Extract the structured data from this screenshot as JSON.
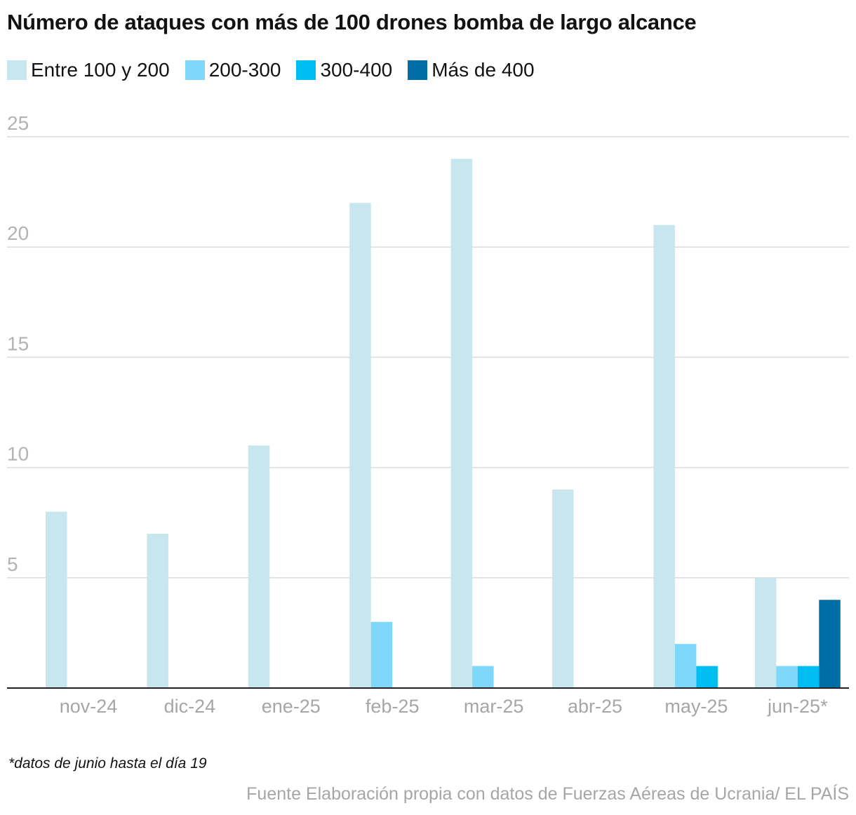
{
  "chart_data": {
    "type": "bar",
    "title": "Número de ataques con más de 100 drones bomba de largo alcance",
    "categories": [
      "nov-24",
      "dic-24",
      "ene-25",
      "feb-25",
      "mar-25",
      "abr-25",
      "may-25",
      "jun-25*"
    ],
    "series": [
      {
        "name": "Entre 100 y 200",
        "color": "#c8e6ee",
        "values": [
          8,
          7,
          11,
          22,
          24,
          9,
          21,
          5
        ]
      },
      {
        "name": "200-300",
        "color": "#7fd8f9",
        "values": [
          0,
          0,
          0,
          3,
          1,
          0,
          2,
          1
        ]
      },
      {
        "name": "300-400",
        "color": "#00bdf2",
        "values": [
          0,
          0,
          0,
          0,
          0,
          0,
          1,
          1
        ]
      },
      {
        "name": "Más de 400",
        "color": "#006ea6",
        "values": [
          0,
          0,
          0,
          0,
          0,
          0,
          0,
          4
        ]
      }
    ],
    "yticks": [
      5,
      10,
      15,
      20,
      25
    ],
    "ylim": [
      0,
      25
    ],
    "xlabel": "",
    "ylabel": "",
    "grid": true,
    "legend_position": "top-left"
  },
  "footnote": "*datos de junio hasta el día 19",
  "source": "Fuente Elaboración propia con datos de Fuerzas Aéreas de Ucrania/ EL PAÍS"
}
